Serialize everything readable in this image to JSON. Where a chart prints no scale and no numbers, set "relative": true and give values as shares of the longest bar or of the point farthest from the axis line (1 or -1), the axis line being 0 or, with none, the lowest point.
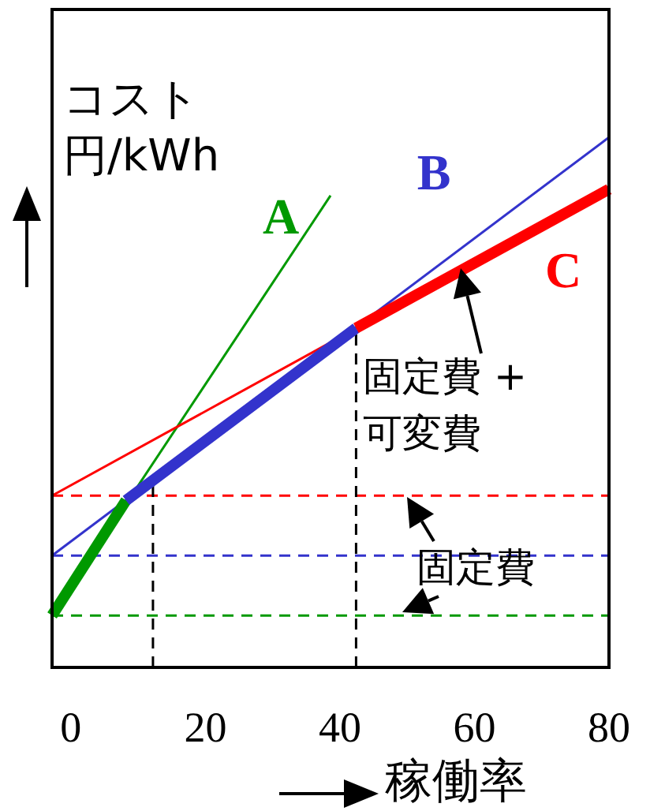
{
  "chart_data": {
    "type": "line",
    "relative": true,
    "xlabel": "稼働率",
    "ylabel": "コスト円/kWh",
    "xlim": [
      -2.8,
      80
    ],
    "xticks": [
      0,
      20,
      40,
      60,
      80
    ],
    "legend": false,
    "grid": false,
    "marker": "none",
    "line_style": "solid",
    "series": [
      {
        "name": "A",
        "color": "#009900",
        "x": [
          -2.8,
          38.6
        ],
        "values": [
          0.098,
          0.89
        ]
      },
      {
        "name": "B",
        "color": "#3333cc",
        "x": [
          -2.8,
          80
        ],
        "values": [
          0.211,
          1.0
        ]
      },
      {
        "name": "C",
        "color": "#ff0000",
        "x": [
          -2.8,
          80
        ],
        "values": [
          0.324,
          0.902
        ]
      },
      {
        "color": "#009900",
        "x": [
          -2.8,
          8.2
        ],
        "values": [
          0.098,
          0.315
        ]
      },
      {
        "color": "#3333cc",
        "x": [
          8.2,
          42.4
        ],
        "values": [
          0.315,
          0.64
        ]
      },
      {
        "color": "#ff0000",
        "x": [
          42.4,
          80
        ],
        "values": [
          0.64,
          0.902
        ]
      }
    ],
    "ref_lines": [
      {
        "axis": "y",
        "value": 0.324,
        "color": "#ff0000",
        "line_style": "dashed"
      },
      {
        "axis": "y",
        "value": 0.211,
        "color": "#3333cc",
        "line_style": "dashed"
      },
      {
        "axis": "y",
        "value": 0.098,
        "color": "#009900",
        "line_style": "dashed"
      },
      {
        "axis": "x",
        "value": 12.2,
        "color": "#000000",
        "line_style": "dashed"
      },
      {
        "axis": "x",
        "value": 42.4,
        "color": "#000000",
        "line_style": "dashed"
      }
    ],
    "annotations": [
      "固定費 + 可変費",
      "固定費"
    ]
  }
}
